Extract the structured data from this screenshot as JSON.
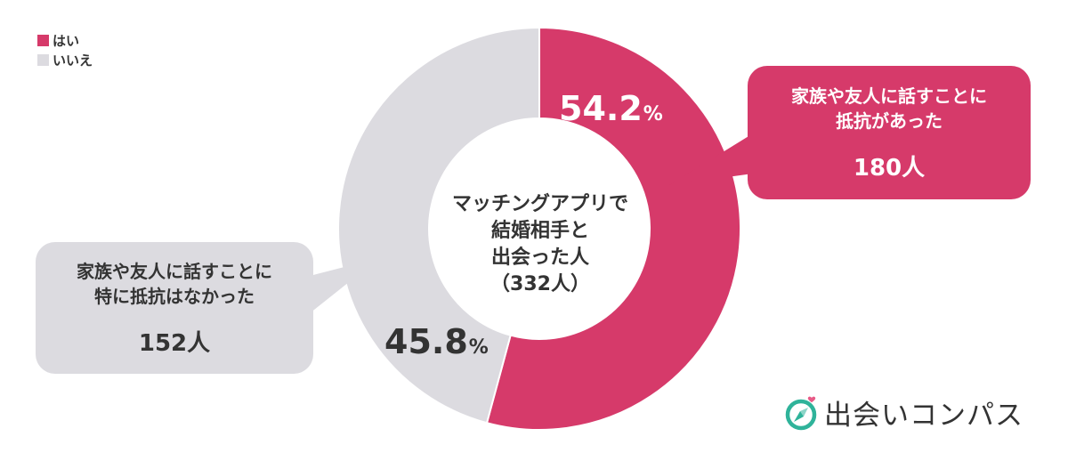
{
  "legend": [
    {
      "label": "はい",
      "color": "#d63a6a"
    },
    {
      "label": "いいえ",
      "color": "#dcdbe0"
    }
  ],
  "chart_data": {
    "type": "pie",
    "variant": "donut",
    "center_label": [
      "マッチングアプリで",
      "結婚相手と",
      "出会った人",
      "（332人）"
    ],
    "slices": [
      {
        "label": "はい",
        "value": 54.2,
        "value_text": "54.2",
        "unit": "%",
        "count": "180人",
        "description": [
          "家族や友人に話すことに",
          "抵抗があった"
        ],
        "color": "#d63a6a"
      },
      {
        "label": "いいえ",
        "value": 45.8,
        "value_text": "45.8",
        "unit": "%",
        "count": "152人",
        "description": [
          "家族や友人に話すことに",
          "特に抵抗はなかった"
        ],
        "color": "#dcdbe0"
      }
    ],
    "legend_position": "top-left"
  },
  "brand": {
    "name": "出会いコンパス",
    "icon": "compass-heart-icon",
    "accent_color": "#2fb39a",
    "heart_color": "#e85a87"
  }
}
